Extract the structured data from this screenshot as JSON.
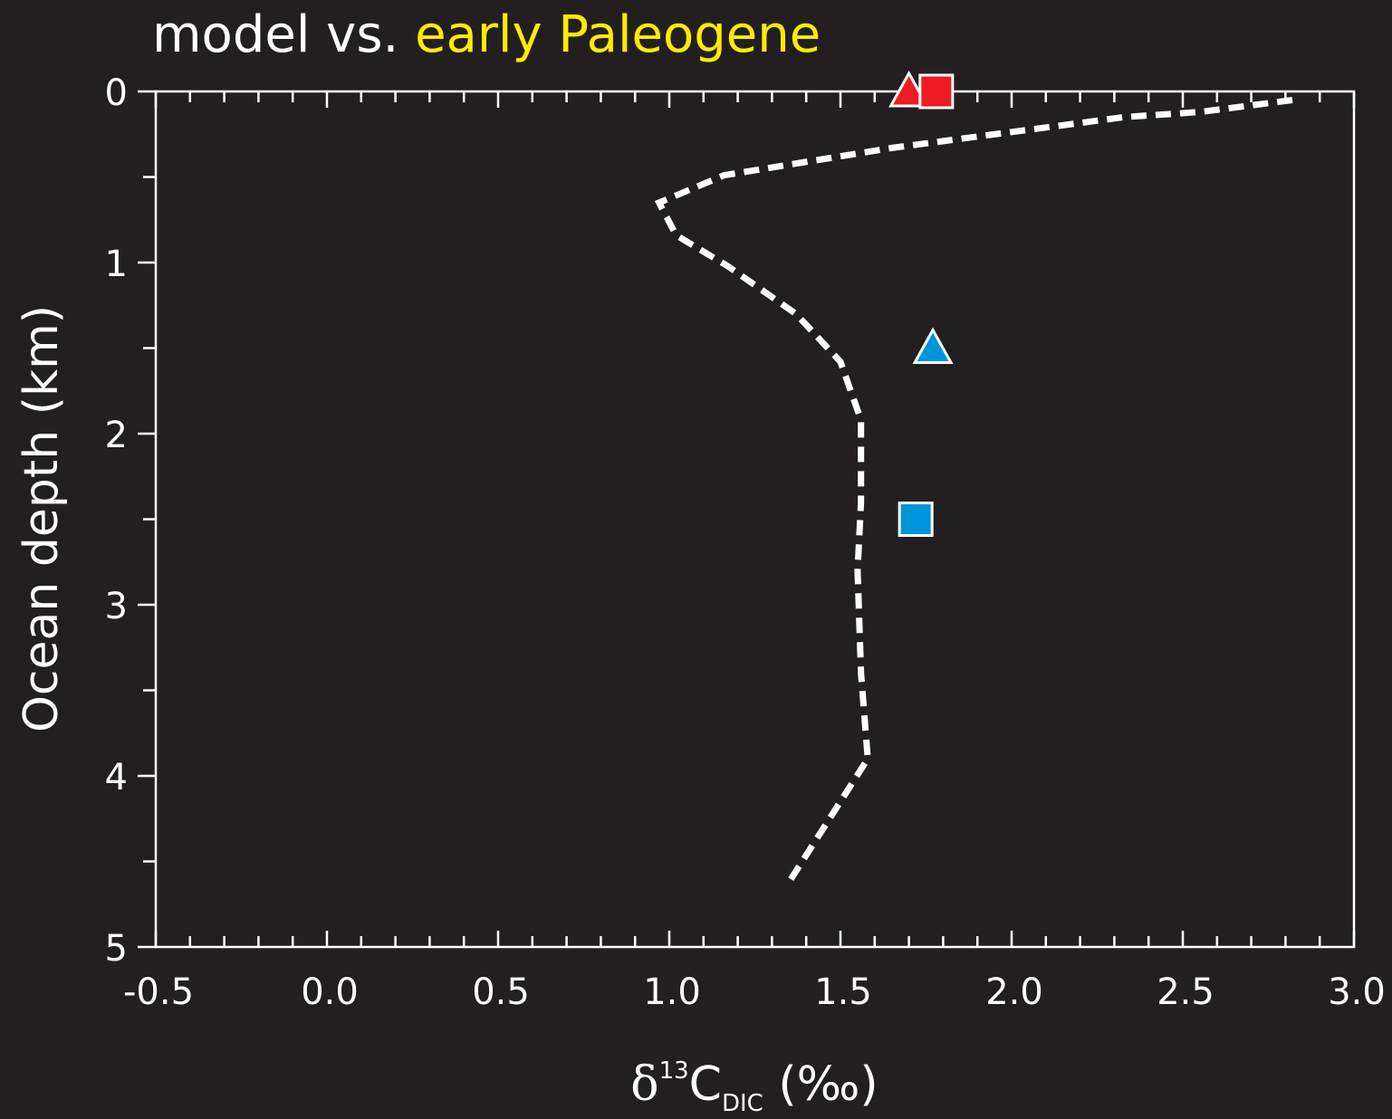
{
  "chart_data": {
    "type": "line",
    "title_parts": [
      "model vs. ",
      "early Paleogene"
    ],
    "title_colors": [
      "#ffffff",
      "#ffec00"
    ],
    "ylabel": "Ocean depth (km)",
    "xlabel": {
      "symbol": "δ",
      "superscript": "13",
      "base": "C",
      "subscript": "DIC",
      "unit": " (‰)"
    },
    "xlim": [
      -0.5,
      3.0
    ],
    "ylim": [
      0,
      5
    ],
    "y_inverted": true,
    "grid": false,
    "x_ticks": [
      -0.5,
      0.0,
      0.5,
      1.0,
      1.5,
      2.0,
      2.5,
      3.0
    ],
    "x_tick_labels": [
      "-0.5",
      "0.0",
      "0.5",
      "1.0",
      "1.5",
      "2.0",
      "2.5",
      "3.0"
    ],
    "x_minor_step": 0.1,
    "y_ticks": [
      0,
      1,
      2,
      3,
      4,
      5
    ],
    "y_tick_labels": [
      "0",
      "1",
      "2",
      "3",
      "4",
      "5"
    ],
    "y_minor_step": 0.5,
    "series": [
      {
        "kind": "line",
        "style": "dashed",
        "color": "#ffffff",
        "x": [
          2.82,
          2.55,
          2.33,
          1.65,
          1.16,
          0.97,
          1.02,
          1.17,
          1.37,
          1.5,
          1.56,
          1.56,
          1.55,
          1.56,
          1.58,
          1.35
        ],
        "y": [
          0.05,
          0.12,
          0.15,
          0.33,
          0.49,
          0.65,
          0.84,
          1.02,
          1.3,
          1.58,
          1.92,
          2.4,
          2.8,
          3.4,
          3.9,
          4.62
        ]
      },
      {
        "kind": "marker",
        "marker": "triangle",
        "color": "#ed1c24",
        "x": [
          1.7
        ],
        "y": [
          0.0
        ]
      },
      {
        "kind": "marker",
        "marker": "square",
        "color": "#ed1c24",
        "x": [
          1.78
        ],
        "y": [
          0.0
        ]
      },
      {
        "kind": "marker",
        "marker": "triangle",
        "color": "#0095da",
        "x": [
          1.77
        ],
        "y": [
          1.5
        ]
      },
      {
        "kind": "marker",
        "marker": "square",
        "color": "#0095da",
        "x": [
          1.72
        ],
        "y": [
          2.5
        ]
      }
    ]
  }
}
